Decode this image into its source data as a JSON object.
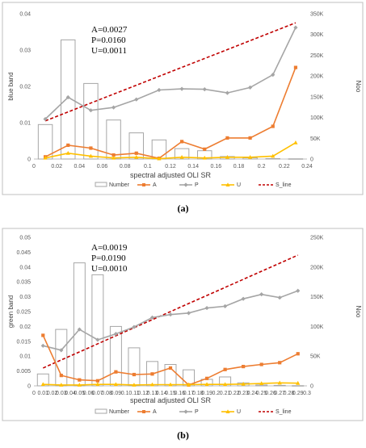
{
  "chart_data": [
    {
      "type": "bar+line",
      "caption": "(a)",
      "ylabel": "blue band",
      "y2label": "Noo",
      "xlabel": "spectral adjusted OLI SR",
      "ylim": [
        0,
        0.04
      ],
      "y2lim": [
        0,
        350000
      ],
      "xlim": [
        0,
        0.24
      ],
      "y_ticks": [
        "0",
        "0.01",
        "0.02",
        "0.03",
        "0.04"
      ],
      "y_tick_values": [
        0,
        0.01,
        0.02,
        0.03,
        0.04
      ],
      "y2_ticks": [
        "0",
        "50K",
        "100K",
        "150K",
        "200K",
        "250K",
        "300K",
        "350K"
      ],
      "y2_tick_values": [
        0,
        50000,
        100000,
        150000,
        200000,
        250000,
        300000,
        350000
      ],
      "x_ticks": [
        "0",
        "0.02",
        "0.04",
        "0.06",
        "0.08",
        "0.1",
        "0.12",
        "0.14",
        "0.16",
        "0.18",
        "0.2",
        "0.22",
        "0.24"
      ],
      "x_tick_values": [
        0,
        0.02,
        0.04,
        0.06,
        0.08,
        0.1,
        0.12,
        0.14,
        0.16,
        0.18,
        0.2,
        0.22,
        0.24
      ],
      "stats": [
        "A=0.0027",
        "P=0.0160",
        "U=0.0011"
      ],
      "x": [
        0.01,
        0.03,
        0.05,
        0.07,
        0.09,
        0.11,
        0.13,
        0.15,
        0.17,
        0.19,
        0.21,
        0.23
      ],
      "bars": [
        83000,
        287000,
        182000,
        94000,
        63000,
        46000,
        25000,
        20000,
        6000,
        3000,
        1000,
        500
      ],
      "A": [
        0.0006,
        0.0038,
        0.003,
        0.0011,
        0.0016,
        0.0002,
        0.0048,
        0.0027,
        0.0058,
        0.0058,
        0.009,
        0.0252
      ],
      "P": [
        0.011,
        0.017,
        0.0134,
        0.0142,
        0.0164,
        0.019,
        0.0193,
        0.0192,
        0.0182,
        0.0197,
        0.0232,
        0.0362
      ],
      "U": [
        0.0003,
        0.0016,
        0.0008,
        0.0003,
        0.0005,
        0.0001,
        0.0005,
        0.0003,
        0.0005,
        0.0005,
        0.0008,
        0.0045
      ],
      "S_line": {
        "x": [
          0.01,
          0.23
        ],
        "y": [
          0.0105,
          0.0375
        ]
      }
    },
    {
      "type": "bar+line",
      "caption": "(b)",
      "ylabel": "green band",
      "y2label": "Noo",
      "xlabel": "spectral adjusted OLI SR",
      "ylim": [
        0,
        0.05
      ],
      "y2lim": [
        0,
        250000
      ],
      "xlim": [
        0,
        0.3
      ],
      "y_ticks": [
        "0",
        "0.005",
        "0.01",
        "0.015",
        "0.02",
        "0.025",
        "0.03",
        "0.035",
        "0.04",
        "0.045",
        "0.05"
      ],
      "y_tick_values": [
        0,
        0.005,
        0.01,
        0.015,
        0.02,
        0.025,
        0.03,
        0.035,
        0.04,
        0.045,
        0.05
      ],
      "y2_ticks": [
        "0",
        "50K",
        "100K",
        "150K",
        "200K",
        "250K"
      ],
      "y2_tick_values": [
        0,
        50000,
        100000,
        150000,
        200000,
        250000
      ],
      "x_ticks": [
        "0",
        "0.01",
        "0.02",
        "0.03",
        "0.04",
        "0.05",
        "0.06",
        "0.07",
        "0.08",
        "0.09",
        "0.1",
        "0.11",
        "0.12",
        "0.13",
        "0.14",
        "0.15",
        "0.16",
        "0.17",
        "0.18",
        "0.19",
        "0.2",
        "0.21",
        "0.22",
        "0.23",
        "0.24",
        "0.25",
        "0.26",
        "0.27",
        "0.28",
        "0.29",
        "0.3"
      ],
      "x_tick_values": [
        0,
        0.01,
        0.02,
        0.03,
        0.04,
        0.05,
        0.06,
        0.07,
        0.08,
        0.09,
        0.1,
        0.11,
        0.12,
        0.13,
        0.14,
        0.15,
        0.16,
        0.17,
        0.18,
        0.19,
        0.2,
        0.21,
        0.22,
        0.23,
        0.24,
        0.25,
        0.26,
        0.27,
        0.28,
        0.29,
        0.3
      ],
      "stats": [
        "A=0.0019",
        "P=0.0190",
        "U=0.0010"
      ],
      "x": [
        0.01,
        0.03,
        0.05,
        0.07,
        0.09,
        0.11,
        0.13,
        0.15,
        0.17,
        0.19,
        0.21,
        0.23,
        0.25,
        0.27,
        0.29
      ],
      "bars": [
        20000,
        95000,
        207000,
        187000,
        100000,
        64000,
        41000,
        36000,
        27000,
        11000,
        15000,
        5000,
        1500,
        800,
        300
      ],
      "A": [
        0.017,
        0.0035,
        0.002,
        0.0017,
        0.0047,
        0.0038,
        0.004,
        0.006,
        0.0003,
        0.0025,
        0.0055,
        0.0065,
        0.0072,
        0.0078,
        0.0108
      ],
      "P": [
        0.0135,
        0.012,
        0.019,
        0.0155,
        0.0175,
        0.0198,
        0.023,
        0.024,
        0.0245,
        0.0262,
        0.0268,
        0.0293,
        0.0308,
        0.0297,
        0.032
      ],
      "U": [
        0.0005,
        0.0003,
        0.0003,
        0.0005,
        0.0005,
        0.0003,
        0.0004,
        0.0004,
        0.0004,
        0.0005,
        0.0005,
        0.0006,
        0.0008,
        0.001,
        0.0009
      ],
      "S_line": {
        "x": [
          0.01,
          0.29
        ],
        "y": [
          0.006,
          0.044
        ]
      }
    }
  ],
  "legend": {
    "items": [
      "Number",
      "A",
      "P",
      "U",
      "S_line"
    ]
  },
  "colors": {
    "bar_stroke": "#a6a6a6",
    "A": "#ed7d31",
    "P": "#a5a5a5",
    "U": "#ffc000",
    "S_line": "#c00000"
  }
}
